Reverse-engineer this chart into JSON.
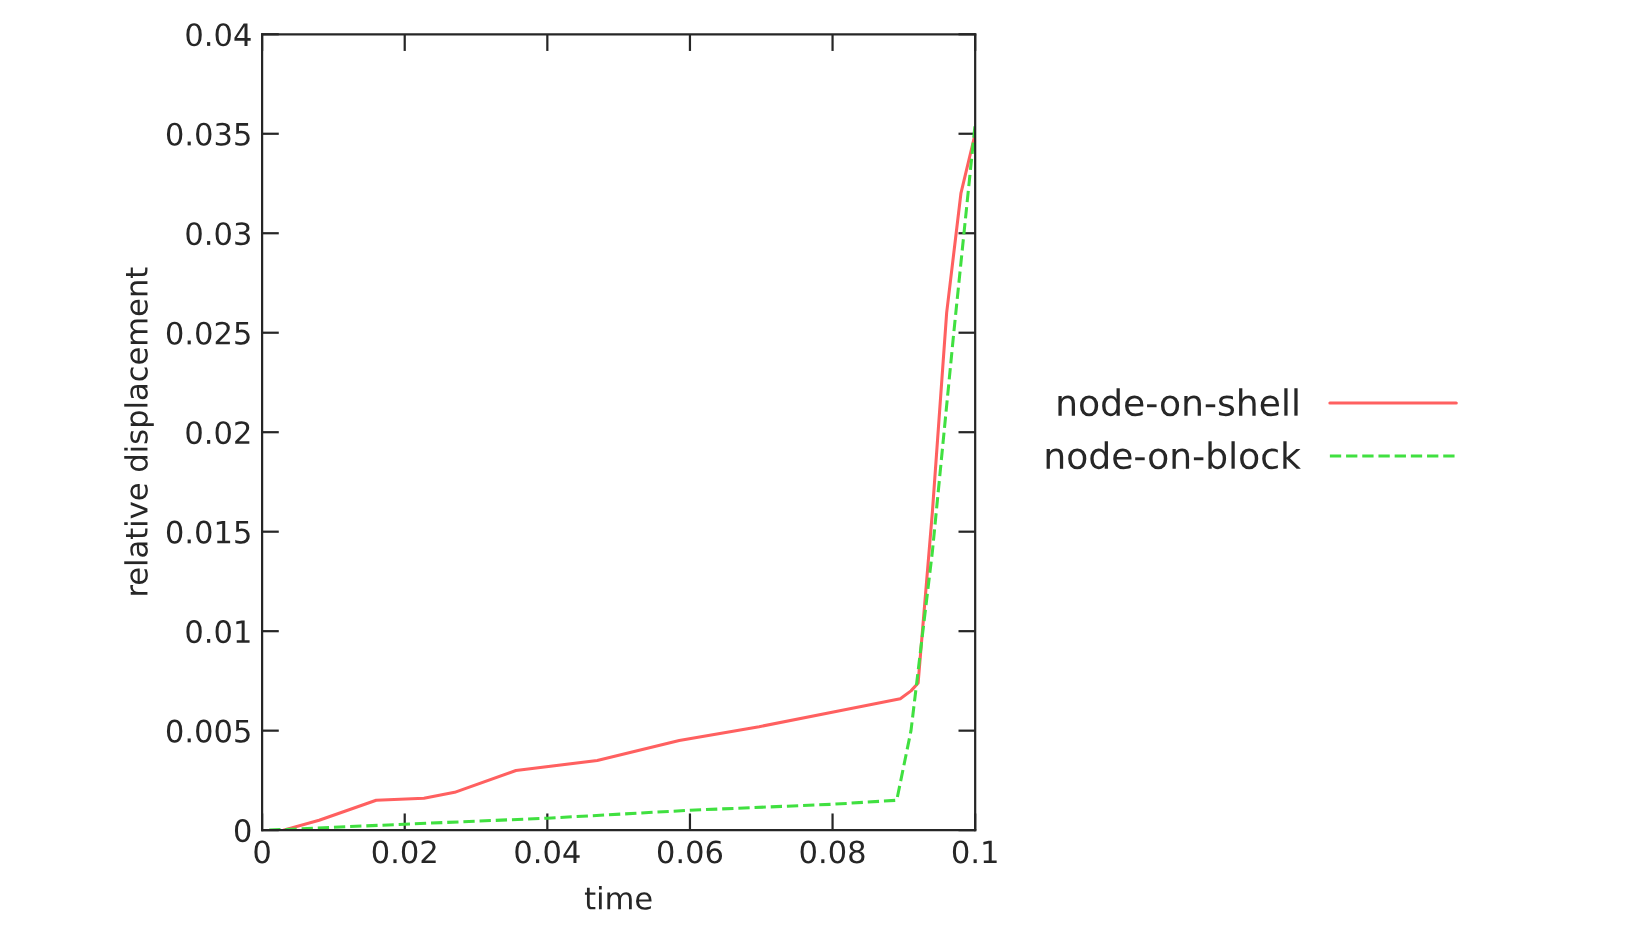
{
  "chart_data": {
    "type": "line",
    "xlabel": "time",
    "ylabel": "relative displacement",
    "xlim": [
      0,
      0.1
    ],
    "ylim": [
      0,
      0.04
    ],
    "xticks": [
      0,
      0.02,
      0.04,
      0.06,
      0.08,
      0.1
    ],
    "yticks": [
      0,
      0.005,
      0.01,
      0.015,
      0.02,
      0.025,
      0.03,
      0.035,
      0.04
    ],
    "grid": false,
    "legend": "right",
    "series": [
      {
        "name": "node-on-shell",
        "color": "#ff6060",
        "line_style": "solid",
        "x": [
          0.003,
          0.008,
          0.016,
          0.0227,
          0.027,
          0.0356,
          0.047,
          0.0585,
          0.0697,
          0.081,
          0.0895,
          0.091,
          0.092,
          0.094,
          0.096,
          0.098,
          0.1
        ],
        "values": [
          0,
          0.0005,
          0.0015,
          0.0016,
          0.0019,
          0.003,
          0.0035,
          0.0045,
          0.0052,
          0.006,
          0.0066,
          0.007,
          0.0074,
          0.016,
          0.026,
          0.032,
          0.035
        ]
      },
      {
        "name": "node-on-block",
        "color": "#40e040",
        "line_style": "dashed",
        "x": [
          0.001,
          0.02,
          0.04,
          0.06,
          0.08,
          0.089,
          0.091,
          0.094,
          0.097,
          0.1
        ],
        "values": [
          0,
          0.0003,
          0.0006,
          0.001,
          0.0013,
          0.0015,
          0.005,
          0.014,
          0.025,
          0.0355
        ]
      }
    ]
  }
}
